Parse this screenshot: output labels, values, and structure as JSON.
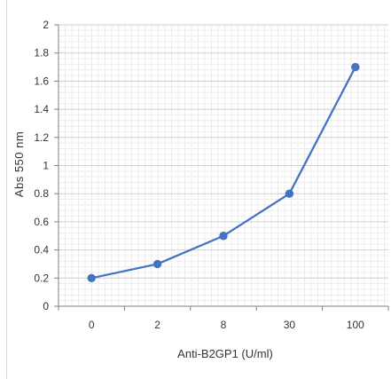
{
  "chart_data": {
    "type": "line",
    "categories": [
      "0",
      "2",
      "8",
      "30",
      "100"
    ],
    "series": [
      {
        "values": [
          0.2,
          0.3,
          0.5,
          0.8,
          1.7
        ]
      }
    ],
    "xlabel": "Anti-B2GP1 (U/ml)",
    "ylabel": "Abs 550 nm",
    "ylim": [
      0,
      2
    ],
    "yticks": [
      "0",
      "0.2",
      "0.4",
      "0.6",
      "0.8",
      "1",
      "1.2",
      "1.4",
      "1.6",
      "1.8",
      "2"
    ],
    "grid": "horizontal and vertical",
    "line_color": "#4472c4",
    "marker_color": "#4472c4",
    "legend": "none"
  }
}
